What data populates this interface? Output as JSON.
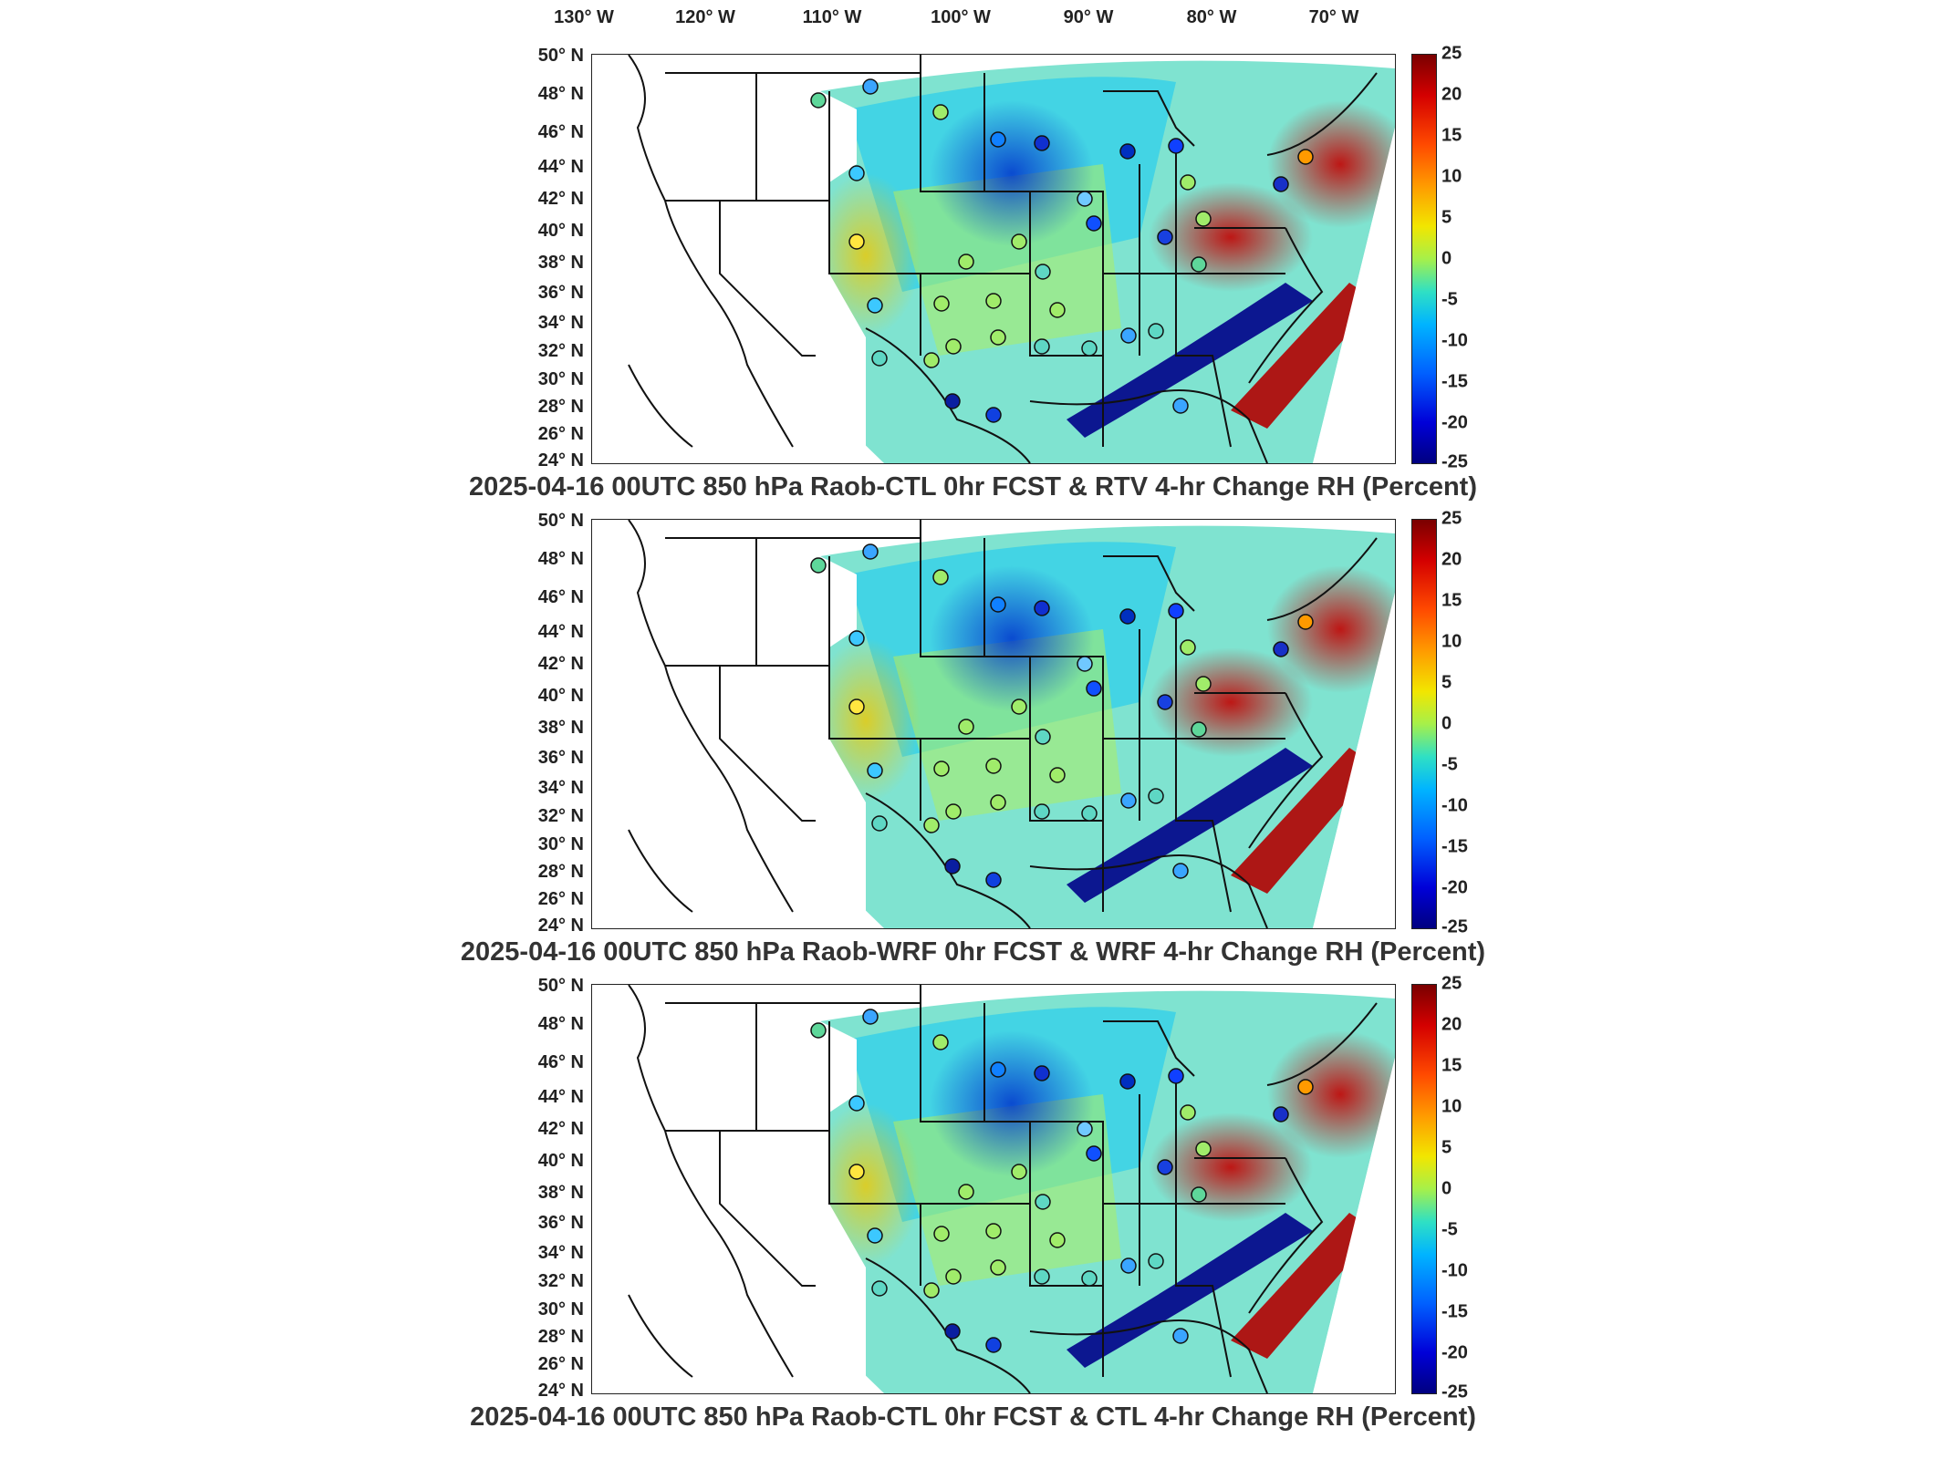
{
  "lon_labels": [
    "130° W",
    "120° W",
    "110° W",
    "100° W",
    "90° W",
    "80° W",
    "70° W"
  ],
  "lat_labels": [
    "50° N",
    "48° N",
    "46° N",
    "44° N",
    "42° N",
    "40° N",
    "38° N",
    "36° N",
    "34° N",
    "32° N",
    "30° N",
    "28° N",
    "26° N",
    "24° N"
  ],
  "colorbar_ticks": [
    "25",
    "20",
    "15",
    "10",
    "5",
    "0",
    "-5",
    "-10",
    "-15",
    "-20",
    "-25"
  ],
  "panels": [
    {
      "title": "2025-04-16 00UTC 850 hPa Raob-CTL 0hr FCST & RTV 4-hr Change RH (Percent)"
    },
    {
      "title": "2025-04-16 00UTC 850 hPa Raob-WRF 0hr FCST & WRF 4-hr Change RH (Percent)"
    },
    {
      "title": "2025-04-16 00UTC 850 hPa Raob-CTL 0hr FCST & CTL 4-hr Change RH (Percent)"
    }
  ]
}
